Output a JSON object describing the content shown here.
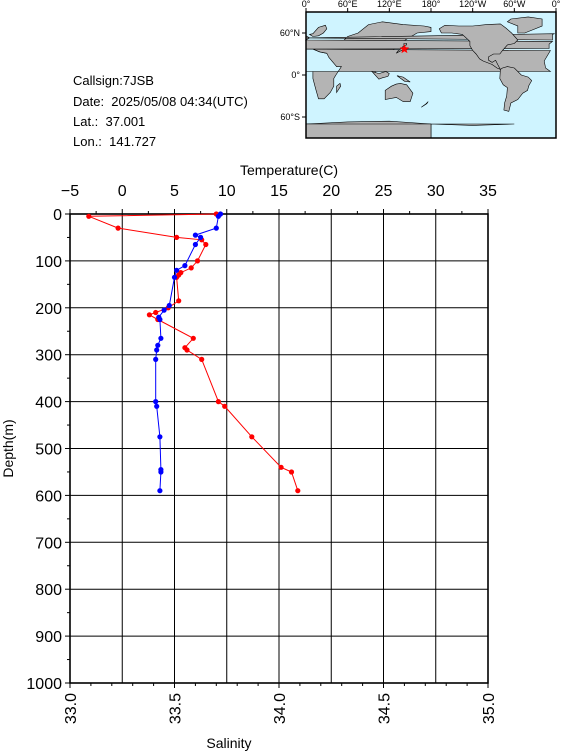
{
  "station": {
    "callsign": "Callsign:7JSB",
    "date": "Date:  2025/05/08 04:34(UTC)",
    "lat": "Lat.:  37.001",
    "lon": "Lon.:  141.727"
  },
  "map": {
    "top_ticks": [
      "0°",
      "60°E",
      "120°E",
      "180°",
      "120°W",
      "60°W",
      "0°"
    ],
    "left_ticks": [
      "60°N",
      "0°",
      "60°S"
    ],
    "ocean_color": "#cff4ff",
    "land_color": "#b4b4b4",
    "marker_color": "#ff0000",
    "marker": {
      "lat": 37.001,
      "lon": 141.727
    }
  },
  "chart_data": {
    "type": "line",
    "ylabel": "Depth(m)",
    "ylim": [
      1000,
      0
    ],
    "yticks": [
      "0",
      "100",
      "200",
      "300",
      "400",
      "500",
      "600",
      "700",
      "800",
      "900",
      "1000"
    ],
    "x_top": {
      "label": "Temperature(C)",
      "range": [
        -5,
        35
      ],
      "ticks": [
        "−5",
        "0",
        "5",
        "10",
        "15",
        "20",
        "25",
        "30",
        "35"
      ]
    },
    "x_bottom": {
      "label": "Salinity",
      "range": [
        33.0,
        35.0
      ],
      "ticks": [
        "33.0",
        "33.5",
        "34.0",
        "34.5",
        "35.0"
      ]
    },
    "grid": true,
    "series": [
      {
        "axis": "top",
        "color": "#0000ff",
        "points": [
          [
            9.4,
            0
          ],
          [
            9.2,
            5
          ],
          [
            9.0,
            30
          ],
          [
            7.0,
            45
          ],
          [
            7.5,
            50
          ],
          [
            7.0,
            65
          ],
          [
            6.0,
            110
          ],
          [
            5.2,
            120
          ],
          [
            5.0,
            135
          ],
          [
            4.5,
            195
          ],
          [
            4.0,
            205
          ],
          [
            3.5,
            220
          ],
          [
            3.6,
            225
          ],
          [
            3.7,
            265
          ],
          [
            3.4,
            280
          ],
          [
            3.3,
            290
          ],
          [
            3.2,
            310
          ],
          [
            3.2,
            400
          ],
          [
            3.3,
            410
          ],
          [
            3.6,
            475
          ],
          [
            3.7,
            545
          ],
          [
            3.7,
            550
          ],
          [
            3.6,
            590
          ]
        ]
      },
      {
        "axis": "bottom",
        "color": "#ff0000",
        "points": [
          [
            33.7,
            0
          ],
          [
            33.09,
            5
          ],
          [
            33.23,
            30
          ],
          [
            33.51,
            50
          ],
          [
            33.63,
            55
          ],
          [
            33.65,
            65
          ],
          [
            33.61,
            100
          ],
          [
            33.58,
            115
          ],
          [
            33.53,
            125
          ],
          [
            33.52,
            130
          ],
          [
            33.51,
            135
          ],
          [
            33.52,
            185
          ],
          [
            33.47,
            200
          ],
          [
            33.41,
            210
          ],
          [
            33.38,
            215
          ],
          [
            33.42,
            225
          ],
          [
            33.59,
            265
          ],
          [
            33.55,
            285
          ],
          [
            33.56,
            290
          ],
          [
            33.63,
            310
          ],
          [
            33.71,
            400
          ],
          [
            33.74,
            410
          ],
          [
            33.87,
            475
          ],
          [
            34.01,
            540
          ],
          [
            34.06,
            550
          ],
          [
            34.09,
            590
          ]
        ]
      }
    ]
  }
}
